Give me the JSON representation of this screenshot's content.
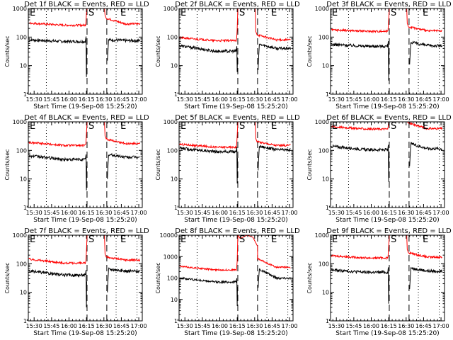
{
  "figure": {
    "layout": "3x3 grid",
    "xlabel": "Start Time (19-Sep-08 15:25:20)",
    "ylabel": "Counts/sec",
    "legend_text": "BLACK = Events, RED = LLD",
    "colors": {
      "events": "#000000",
      "lld": "#ff0000",
      "axes": "#000000",
      "background": "#ffffff"
    }
  },
  "chart_data": [
    {
      "type": "line",
      "detector": "1f",
      "title": "Det 1f BLACK = Events, RED = LLD",
      "xlabel": "Start Time (19-Sep-08 15:25:20)",
      "ylabel": "Counts/sec",
      "x_ticks": [
        "15:30",
        "15:45",
        "16:00",
        "16:15",
        "16:30",
        "16:45",
        "17:00"
      ],
      "xlim_minutes_after_1530": [
        -5,
        93
      ],
      "y_scale": "log",
      "ylim": [
        1,
        1000
      ],
      "y_ticks": [
        "1",
        "10",
        "100",
        "1000"
      ],
      "markers": [
        {
          "label": "E",
          "t": -5
        },
        {
          "label": "S",
          "t": 45.5
        },
        {
          "label": "E",
          "t": 73
        }
      ],
      "dashed_lines_t": [
        45.5,
        62.5
      ],
      "dotted_lines_t": [
        10.5,
        70.5,
        88.5
      ],
      "series": [
        {
          "name": "Events",
          "color": "#000000",
          "pre_start": 80,
          "pre_end": 70,
          "dip_min": 4,
          "post_start": 80,
          "post_end": 75,
          "post_dip_min": 15
        },
        {
          "name": "LLD",
          "color": "#ff0000",
          "pre_start": 310,
          "pre_end": 260,
          "peak": 1000,
          "post_start": 450,
          "post_end": 290
        }
      ]
    },
    {
      "type": "line",
      "detector": "2f",
      "title": "Det 2f BLACK = Events, RED = LLD",
      "xlabel": "Start Time (19-Sep-08 15:25:20)",
      "ylabel": "Counts/sec",
      "x_ticks": [
        "15:30",
        "15:45",
        "16:00",
        "16:15",
        "16:30",
        "16:45",
        "17:00"
      ],
      "xlim_minutes_after_1530": [
        -5,
        93
      ],
      "y_scale": "log",
      "ylim": [
        1,
        1000
      ],
      "y_ticks": [
        "1",
        "10",
        "100",
        "1000"
      ],
      "markers": [
        {
          "label": "E",
          "t": -5
        },
        {
          "label": "S",
          "t": 45.5
        },
        {
          "label": "E",
          "t": 73
        }
      ],
      "dashed_lines_t": [
        45.5,
        62.5
      ],
      "dotted_lines_t": [
        10.5,
        70.5,
        88.5
      ],
      "series": [
        {
          "name": "Events",
          "color": "#000000",
          "pre_start": 50,
          "pre_end": 32,
          "dip_min": 6,
          "post_start": 55,
          "post_end": 40,
          "post_dip_min": 7
        },
        {
          "name": "LLD",
          "color": "#ff0000",
          "pre_start": 95,
          "pre_end": 75,
          "peak": 1000,
          "post_start": 120,
          "post_end": 80
        }
      ]
    },
    {
      "type": "line",
      "detector": "3f",
      "title": "Det 3f BLACK = Events, RED = LLD",
      "xlabel": "Start Time (19-Sep-08 15:25:20)",
      "ylabel": "Counts/sec",
      "x_ticks": [
        "15:30",
        "15:45",
        "16:00",
        "16:15",
        "16:30",
        "16:45",
        "17:00"
      ],
      "xlim_minutes_after_1530": [
        -5,
        93
      ],
      "y_scale": "log",
      "ylim": [
        1,
        1000
      ],
      "y_ticks": [
        "1",
        "10",
        "100",
        "1000"
      ],
      "markers": [
        {
          "label": "E",
          "t": -5
        },
        {
          "label": "S",
          "t": 45.5
        },
        {
          "label": "E",
          "t": 73
        }
      ],
      "dashed_lines_t": [
        45.5,
        62.5
      ],
      "dotted_lines_t": [
        10.5,
        70.5,
        88.5
      ],
      "series": [
        {
          "name": "Events",
          "color": "#000000",
          "pre_start": 55,
          "pre_end": 48,
          "dip_min": 3,
          "post_start": 65,
          "post_end": 50,
          "post_dip_min": 11
        },
        {
          "name": "LLD",
          "color": "#ff0000",
          "pre_start": 180,
          "pre_end": 160,
          "peak": 1000,
          "post_start": 230,
          "post_end": 165
        }
      ]
    },
    {
      "type": "line",
      "detector": "4f",
      "title": "Det 4f BLACK = Events, RED = LLD",
      "xlabel": "Start Time (19-Sep-08 15:25:20)",
      "ylabel": "Counts/sec",
      "x_ticks": [
        "15:30",
        "15:45",
        "16:00",
        "16:15",
        "16:30",
        "16:45",
        "17:00"
      ],
      "xlim_minutes_after_1530": [
        -5,
        93
      ],
      "y_scale": "log",
      "ylim": [
        1,
        1000
      ],
      "y_ticks": [
        "1",
        "10",
        "100",
        "1000"
      ],
      "markers": [
        {
          "label": "E",
          "t": -5
        },
        {
          "label": "S",
          "t": 45.5
        },
        {
          "label": "E",
          "t": 73
        }
      ],
      "dashed_lines_t": [
        45.5,
        62.5
      ],
      "dotted_lines_t": [
        10.5,
        70.5,
        88.5
      ],
      "series": [
        {
          "name": "Events",
          "color": "#000000",
          "pre_start": 65,
          "pre_end": 48,
          "dip_min": 4,
          "post_start": 70,
          "post_end": 58,
          "post_dip_min": 10
        },
        {
          "name": "LLD",
          "color": "#ff0000",
          "pre_start": 190,
          "pre_end": 150,
          "peak": 1000,
          "post_start": 250,
          "post_end": 175
        }
      ]
    },
    {
      "type": "line",
      "detector": "5f",
      "title": "Det 5f BLACK = Events, RED = LLD",
      "xlabel": "Start Time (19-Sep-08 15:25:20)",
      "ylabel": "Counts/sec",
      "x_ticks": [
        "15:30",
        "15:45",
        "16:00",
        "16:15",
        "16:30",
        "16:45",
        "17:00"
      ],
      "xlim_minutes_after_1530": [
        -5,
        93
      ],
      "y_scale": "log",
      "ylim": [
        1,
        1000
      ],
      "y_ticks": [
        "1",
        "10",
        "100",
        "1000"
      ],
      "markers": [
        {
          "label": "E",
          "t": -5
        },
        {
          "label": "S",
          "t": 45.5
        },
        {
          "label": "E",
          "t": 73
        }
      ],
      "dashed_lines_t": [
        45.5,
        62.5
      ],
      "dotted_lines_t": [
        10.5,
        70.5,
        88.5
      ],
      "series": [
        {
          "name": "Events",
          "color": "#000000",
          "pre_start": 120,
          "pre_end": 90,
          "dip_min": 7,
          "post_start": 140,
          "post_end": 105,
          "post_dip_min": 20
        },
        {
          "name": "LLD",
          "color": "#ff0000",
          "pre_start": 165,
          "pre_end": 130,
          "peak": 1000,
          "post_start": 200,
          "post_end": 150
        }
      ]
    },
    {
      "type": "line",
      "detector": "6f",
      "title": "Det 6f BLACK = Events, RED = LLD",
      "xlabel": "Start Time (19-Sep-08 15:25:20)",
      "ylabel": "Counts/sec",
      "x_ticks": [
        "15:30",
        "15:45",
        "16:00",
        "16:15",
        "16:30",
        "16:45",
        "17:00"
      ],
      "xlim_minutes_after_1530": [
        -5,
        93
      ],
      "y_scale": "log",
      "ylim": [
        1,
        1000
      ],
      "y_ticks": [
        "1",
        "10",
        "100",
        "1000"
      ],
      "markers": [
        {
          "label": "E",
          "t": -5
        },
        {
          "label": "S",
          "t": 45.5
        },
        {
          "label": "E",
          "t": 73
        }
      ],
      "dashed_lines_t": [
        45.5,
        62.5
      ],
      "dotted_lines_t": [
        10.5,
        70.5,
        88.5
      ],
      "series": [
        {
          "name": "Events",
          "color": "#000000",
          "pre_start": 140,
          "pre_end": 105,
          "dip_min": 8,
          "post_start": 170,
          "post_end": 115,
          "post_dip_min": 28
        },
        {
          "name": "LLD",
          "color": "#ff0000",
          "pre_start": 680,
          "pre_end": 560,
          "peak": 1000,
          "post_start": 900,
          "post_end": 580
        }
      ]
    },
    {
      "type": "line",
      "detector": "7f",
      "title": "Det 7f BLACK = Events, RED = LLD",
      "xlabel": "Start Time (19-Sep-08 15:25:20)",
      "ylabel": "Counts/sec",
      "x_ticks": [
        "15:30",
        "15:45",
        "16:00",
        "16:15",
        "16:30",
        "16:45",
        "17:00"
      ],
      "xlim_minutes_after_1530": [
        -5,
        93
      ],
      "y_scale": "log",
      "ylim": [
        1,
        1000
      ],
      "y_ticks": [
        "1",
        "10",
        "100",
        "1000"
      ],
      "markers": [
        {
          "label": "E",
          "t": -5
        },
        {
          "label": "S",
          "t": 45.5
        },
        {
          "label": "E",
          "t": 73
        }
      ],
      "dashed_lines_t": [
        45.5,
        62.5
      ],
      "dotted_lines_t": [
        10.5,
        70.5,
        88.5
      ],
      "series": [
        {
          "name": "Events",
          "color": "#000000",
          "pre_start": 55,
          "pre_end": 40,
          "dip_min": 3,
          "post_start": 65,
          "post_end": 55,
          "post_dip_min": 10
        },
        {
          "name": "LLD",
          "color": "#ff0000",
          "pre_start": 145,
          "pre_end": 105,
          "peak": 1000,
          "post_start": 170,
          "post_end": 135
        }
      ]
    },
    {
      "type": "line",
      "detector": "8f",
      "title": "Det 8f BLACK = Events, RED = LLD",
      "xlabel": "Start Time (19-Sep-08 15:25:20)",
      "ylabel": "Counts/sec",
      "x_ticks": [
        "15:30",
        "15:45",
        "16:00",
        "16:15",
        "16:30",
        "16:45",
        "17:00"
      ],
      "xlim_minutes_after_1530": [
        -5,
        93
      ],
      "y_scale": "log",
      "ylim": [
        1,
        10000
      ],
      "y_ticks": [
        "1",
        "10",
        "100",
        "1000",
        "10000"
      ],
      "markers": [
        {
          "label": "E",
          "t": -5
        },
        {
          "label": "S",
          "t": 45.5
        },
        {
          "label": "E",
          "t": 73
        }
      ],
      "dashed_lines_t": [
        45.5,
        62.5
      ],
      "dotted_lines_t": [
        10.5,
        70.5,
        88.5
      ],
      "series": [
        {
          "name": "Events",
          "color": "#000000",
          "pre_start": 100,
          "pre_end": 65,
          "dip_min": 5,
          "post_start": 250,
          "post_end": 100,
          "post_dip_min": 35
        },
        {
          "name": "LLD",
          "color": "#ff0000",
          "pre_start": 350,
          "pre_end": 240,
          "peak": 10000,
          "post_start": 800,
          "post_end": 320
        }
      ]
    },
    {
      "type": "line",
      "detector": "9f",
      "title": "Det 9f BLACK = Events, RED = LLD",
      "xlabel": "Start Time (19-Sep-08 15:25:20)",
      "ylabel": "Counts/sec",
      "x_ticks": [
        "15:30",
        "15:45",
        "16:00",
        "16:15",
        "16:30",
        "16:45",
        "17:00"
      ],
      "xlim_minutes_after_1530": [
        -5,
        93
      ],
      "y_scale": "log",
      "ylim": [
        1,
        1000
      ],
      "y_ticks": [
        "1",
        "10",
        "100",
        "1000"
      ],
      "markers": [
        {
          "label": "E",
          "t": -5
        },
        {
          "label": "S",
          "t": 45.5
        },
        {
          "label": "E",
          "t": 73
        }
      ],
      "dashed_lines_t": [
        45.5,
        62.5
      ],
      "dotted_lines_t": [
        10.5,
        70.5,
        88.5
      ],
      "series": [
        {
          "name": "Events",
          "color": "#000000",
          "pre_start": 60,
          "pre_end": 50,
          "dip_min": 4,
          "post_start": 70,
          "post_end": 55,
          "post_dip_min": 13
        },
        {
          "name": "LLD",
          "color": "#ff0000",
          "pre_start": 190,
          "pre_end": 160,
          "peak": 1000,
          "post_start": 240,
          "post_end": 170
        }
      ]
    }
  ]
}
